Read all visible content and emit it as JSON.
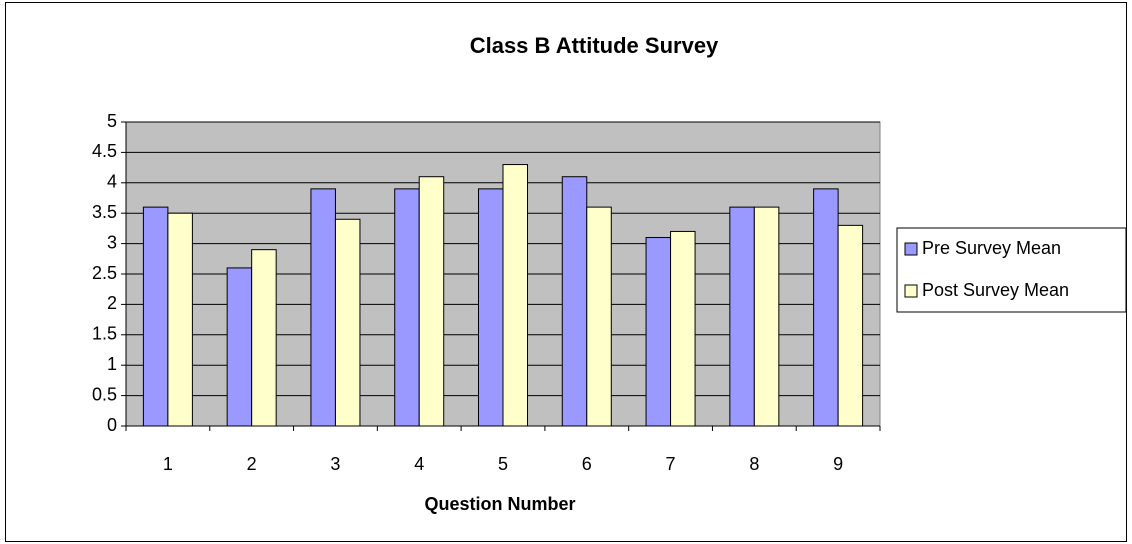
{
  "chart_data": {
    "type": "bar",
    "title": "Class B Attitude Survey",
    "x_label": "Question Number",
    "categories": [
      "1",
      "2",
      "3",
      "4",
      "5",
      "6",
      "7",
      "8",
      "9"
    ],
    "series": [
      {
        "name": "Pre Survey Mean",
        "color": "#9999ff",
        "values": [
          3.6,
          2.6,
          3.9,
          3.9,
          3.9,
          4.1,
          3.1,
          3.6,
          3.9
        ]
      },
      {
        "name": "Post Survey Mean",
        "color": "#ffffcc",
        "values": [
          3.5,
          2.9,
          3.4,
          4.1,
          4.3,
          3.6,
          3.2,
          3.6,
          3.3
        ]
      }
    ],
    "ylim": [
      0,
      5
    ],
    "yticks": [
      0,
      0.5,
      1,
      1.5,
      2,
      2.5,
      3,
      3.5,
      4,
      4.5,
      5
    ],
    "grid": true,
    "plot_background": "#c0c0c0",
    "legend": "right"
  }
}
